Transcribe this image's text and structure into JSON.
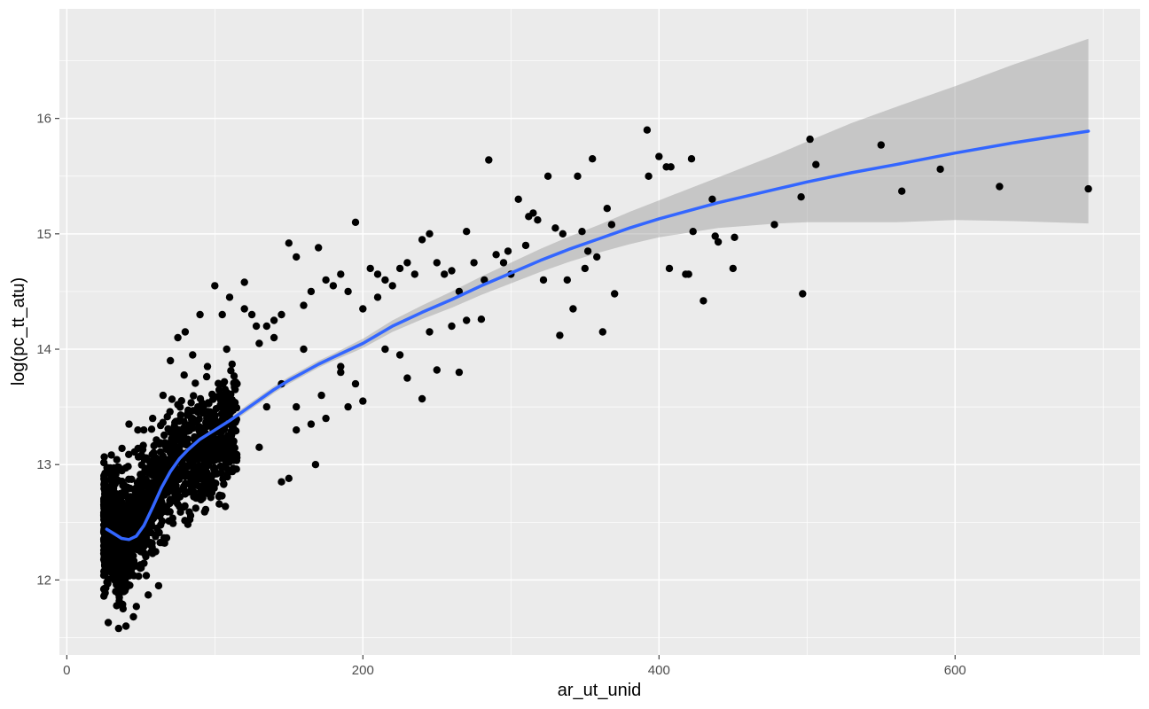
{
  "chart_data": {
    "type": "scatter",
    "title": "",
    "xlabel": "ar_ut_unid",
    "ylabel": "log(pc_tt_atu)",
    "xlim": [
      -5,
      725
    ],
    "ylim": [
      11.35,
      16.95
    ],
    "x_ticks": [
      0,
      200,
      400,
      600
    ],
    "x_tick_labels": [
      "0",
      "200",
      "400",
      "600"
    ],
    "y_ticks": [
      12,
      13,
      14,
      15,
      16
    ],
    "y_tick_labels": [
      "12",
      "13",
      "14",
      "15",
      "16"
    ],
    "grid": true,
    "legend": "none",
    "colors": {
      "panel": "#ebebeb",
      "grid": "#ffffff",
      "points": "#000000",
      "smooth_line": "#3366ff",
      "ribbon": "#999999"
    },
    "series": [
      {
        "kind": "points",
        "dense_cluster": {
          "x_range": [
            25,
            115
          ],
          "y_center_curve": [
            [
              30,
              12.45
            ],
            [
              40,
              12.4
            ],
            [
              50,
              12.55
            ],
            [
              60,
              12.75
            ],
            [
              70,
              12.95
            ],
            [
              80,
              13.1
            ],
            [
              95,
              13.15
            ],
            [
              110,
              13.3
            ]
          ],
          "y_spread": 0.45
        },
        "x": [
          28,
          35,
          40,
          45,
          47,
          33,
          38,
          55,
          62,
          30,
          42,
          48,
          52,
          58,
          65,
          70,
          75,
          80,
          85,
          90,
          95,
          100,
          105,
          110,
          115,
          120,
          125,
          130,
          135,
          140,
          145,
          150,
          155,
          160,
          165,
          170,
          175,
          180,
          185,
          190,
          195,
          200,
          205,
          210,
          215,
          220,
          225,
          230,
          235,
          240,
          245,
          250,
          255,
          260,
          265,
          270,
          275,
          282,
          285,
          290,
          295,
          298,
          300,
          305,
          310,
          312,
          315,
          318,
          322,
          325,
          330,
          333,
          335,
          338,
          342,
          345,
          348,
          350,
          352,
          355,
          358,
          362,
          365,
          368,
          370,
          392,
          393,
          400,
          405,
          407,
          408,
          418,
          420,
          422,
          423,
          430,
          436,
          438,
          440,
          450,
          451,
          478,
          496,
          497,
          502,
          506,
          550,
          564,
          590,
          630,
          690,
          150,
          155,
          168,
          172,
          195,
          240,
          250,
          265,
          280,
          155,
          175,
          200,
          230,
          108,
          120,
          128,
          140,
          145,
          160,
          185,
          210,
          225,
          245,
          260,
          270,
          185,
          190,
          215,
          135,
          145,
          130,
          165
        ],
        "y": [
          11.63,
          11.58,
          11.6,
          11.68,
          11.77,
          11.9,
          11.75,
          11.87,
          11.95,
          12.9,
          13.35,
          13.3,
          13.3,
          13.4,
          13.6,
          13.9,
          14.1,
          14.15,
          13.95,
          14.3,
          13.85,
          14.55,
          14.3,
          14.45,
          13.7,
          14.58,
          14.3,
          14.05,
          14.2,
          14.25,
          14.3,
          14.92,
          14.8,
          14.38,
          14.5,
          14.88,
          14.6,
          14.55,
          14.65,
          14.5,
          15.1,
          14.35,
          14.7,
          14.65,
          14.6,
          14.55,
          14.7,
          14.75,
          14.65,
          14.95,
          15.0,
          14.75,
          14.65,
          14.68,
          14.5,
          15.02,
          14.75,
          14.6,
          15.64,
          14.82,
          14.75,
          14.85,
          14.65,
          15.3,
          14.9,
          15.15,
          15.18,
          15.12,
          14.6,
          15.5,
          15.05,
          14.12,
          15.0,
          14.6,
          14.35,
          15.5,
          15.02,
          14.7,
          14.85,
          15.65,
          14.8,
          14.15,
          15.22,
          15.08,
          14.48,
          15.9,
          15.5,
          15.67,
          15.58,
          14.7,
          15.58,
          14.65,
          14.65,
          15.65,
          15.02,
          14.42,
          15.3,
          14.98,
          14.93,
          14.7,
          14.97,
          15.08,
          15.32,
          14.48,
          15.82,
          15.6,
          15.77,
          15.37,
          15.56,
          15.41,
          15.39,
          12.88,
          13.3,
          13.0,
          13.6,
          13.7,
          13.57,
          13.82,
          13.8,
          14.26,
          13.5,
          13.4,
          13.55,
          13.75,
          14.0,
          14.35,
          14.2,
          14.1,
          13.7,
          14.0,
          13.85,
          14.45,
          13.95,
          14.15,
          14.2,
          14.25,
          13.8,
          13.5,
          14.0,
          13.5,
          12.85,
          13.15,
          13.35
        ]
      },
      {
        "kind": "smooth",
        "name": "",
        "x": [
          27,
          32,
          37,
          42,
          47,
          52,
          58,
          64,
          70,
          76,
          82,
          90,
          100,
          110,
          120,
          130,
          140,
          150,
          160,
          170,
          180,
          200,
          220,
          240,
          260,
          280,
          300,
          320,
          340,
          360,
          380,
          400,
          420,
          440,
          460,
          480,
          500,
          530,
          560,
          600,
          640,
          690
        ],
        "y": [
          12.44,
          12.4,
          12.36,
          12.35,
          12.38,
          12.47,
          12.63,
          12.8,
          12.94,
          13.05,
          13.13,
          13.22,
          13.3,
          13.38,
          13.47,
          13.56,
          13.65,
          13.73,
          13.8,
          13.87,
          13.93,
          14.05,
          14.2,
          14.32,
          14.43,
          14.55,
          14.66,
          14.77,
          14.87,
          14.96,
          15.05,
          15.13,
          15.2,
          15.27,
          15.33,
          15.39,
          15.45,
          15.53,
          15.6,
          15.7,
          15.79,
          15.89
        ],
        "ci_half_width": [
          0.14,
          0.1,
          0.07,
          0.05,
          0.04,
          0.03,
          0.03,
          0.03,
          0.03,
          0.03,
          0.03,
          0.03,
          0.03,
          0.03,
          0.03,
          0.03,
          0.03,
          0.03,
          0.03,
          0.03,
          0.03,
          0.04,
          0.05,
          0.06,
          0.07,
          0.08,
          0.09,
          0.1,
          0.11,
          0.12,
          0.14,
          0.16,
          0.19,
          0.22,
          0.26,
          0.3,
          0.35,
          0.43,
          0.5,
          0.58,
          0.68,
          0.8
        ]
      }
    ]
  }
}
